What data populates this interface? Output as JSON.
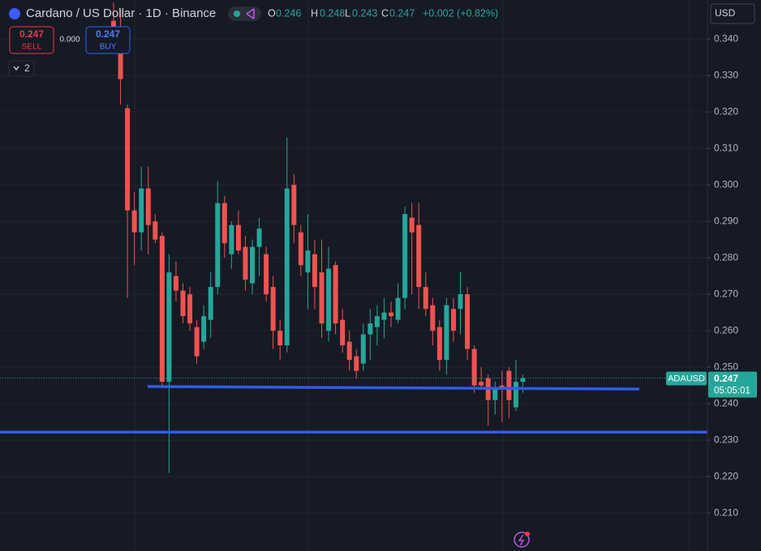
{
  "chart_data": {
    "type": "candlestick",
    "title": "Cardano / US Dollar · 1D · Binance",
    "ohlc": [
      {
        "label": "O",
        "value": "0.246"
      },
      {
        "label": "H",
        "value": "0.248"
      },
      {
        "label": "L",
        "value": "0.243"
      },
      {
        "label": "C",
        "value": "0.247"
      }
    ],
    "change": "+0.002 (+0.82%)",
    "sell": {
      "price": "0.247",
      "label": "SELL"
    },
    "spread": "0.000",
    "buy": {
      "price": "0.247",
      "label": "BUY"
    },
    "indicator_count": "2",
    "currency": "USD",
    "symbol": "ADAUSD",
    "last_price": 0.247,
    "countdown": "05:05:01",
    "up_color": "#26a69a",
    "down_color": "#ef5350",
    "line_color": "#2f5ce8",
    "ylim": [
      0.1996,
      0.3507
    ],
    "yticks": [
      {
        "value": 0.34,
        "label": "0.340"
      },
      {
        "value": 0.33,
        "label": "0.330"
      },
      {
        "value": 0.32,
        "label": "0.320"
      },
      {
        "value": 0.31,
        "label": "0.310"
      },
      {
        "value": 0.3,
        "label": "0.300"
      },
      {
        "value": 0.29,
        "label": "0.290"
      },
      {
        "value": 0.28,
        "label": "0.280"
      },
      {
        "value": 0.27,
        "label": "0.270"
      },
      {
        "value": 0.26,
        "label": "0.260"
      },
      {
        "value": 0.25,
        "label": "0.250"
      },
      {
        "value": 0.24,
        "label": "0.240"
      },
      {
        "value": 0.23,
        "label": "0.230"
      },
      {
        "value": 0.22,
        "label": "0.220"
      },
      {
        "value": 0.21,
        "label": "0.210"
      }
    ],
    "grid": true,
    "trendlines": [
      {
        "values": [
          0.2447,
          0.244
        ]
      },
      {
        "values": [
          0.2322,
          0.2322
        ]
      }
    ],
    "candles": {
      "open": [
        0.345,
        0.34,
        0.321,
        0.293,
        0.287,
        0.299,
        0.29,
        0.286,
        0.246,
        0.275,
        0.271,
        0.27,
        0.261,
        0.257,
        0.263,
        0.272,
        0.295,
        0.281,
        0.289,
        0.283,
        0.273,
        0.283,
        0.281,
        0.272,
        0.26,
        0.256,
        0.3,
        0.287,
        0.276,
        0.281,
        0.276,
        0.26,
        0.278,
        0.263,
        0.257,
        0.253,
        0.251,
        0.259,
        0.261,
        0.263,
        0.265,
        0.263,
        0.269,
        0.291,
        0.289,
        0.272,
        0.267,
        0.261,
        0.252,
        0.266,
        0.266,
        0.27,
        0.255,
        0.246,
        0.247,
        0.241,
        0.245,
        0.249,
        0.239,
        0.246
      ],
      "high": [
        0.35,
        0.348,
        0.322,
        0.298,
        0.305,
        0.305,
        0.292,
        0.287,
        0.281,
        0.279,
        0.273,
        0.272,
        0.263,
        0.267,
        0.276,
        0.301,
        0.297,
        0.29,
        0.293,
        0.286,
        0.285,
        0.291,
        0.283,
        0.275,
        0.263,
        0.313,
        0.303,
        0.289,
        0.292,
        0.285,
        0.285,
        0.283,
        0.279,
        0.266,
        0.26,
        0.255,
        0.262,
        0.266,
        0.267,
        0.269,
        0.268,
        0.273,
        0.294,
        0.295,
        0.295,
        0.276,
        0.269,
        0.263,
        0.269,
        0.269,
        0.276,
        0.272,
        0.256,
        0.25,
        0.248,
        0.246,
        0.249,
        0.25,
        0.252,
        0.248
      ],
      "low": [
        0.338,
        0.322,
        0.269,
        0.278,
        0.282,
        0.281,
        0.284,
        0.245,
        0.221,
        0.268,
        0.262,
        0.26,
        0.251,
        0.255,
        0.258,
        0.27,
        0.28,
        0.277,
        0.281,
        0.271,
        0.27,
        0.275,
        0.268,
        0.255,
        0.252,
        0.254,
        0.284,
        0.275,
        0.266,
        0.266,
        0.258,
        0.257,
        0.259,
        0.254,
        0.249,
        0.247,
        0.249,
        0.252,
        0.256,
        0.258,
        0.261,
        0.262,
        0.266,
        0.27,
        0.266,
        0.264,
        0.256,
        0.249,
        0.248,
        0.257,
        0.259,
        0.252,
        0.243,
        0.244,
        0.234,
        0.237,
        0.235,
        0.236,
        0.238,
        0.243
      ],
      "close": [
        0.34,
        0.329,
        0.293,
        0.287,
        0.299,
        0.289,
        0.285,
        0.246,
        0.276,
        0.271,
        0.264,
        0.262,
        0.253,
        0.264,
        0.272,
        0.295,
        0.284,
        0.289,
        0.282,
        0.274,
        0.283,
        0.288,
        0.27,
        0.26,
        0.256,
        0.299,
        0.289,
        0.278,
        0.282,
        0.272,
        0.262,
        0.277,
        0.262,
        0.256,
        0.252,
        0.249,
        0.259,
        0.262,
        0.264,
        0.265,
        0.264,
        0.269,
        0.292,
        0.287,
        0.272,
        0.266,
        0.26,
        0.252,
        0.267,
        0.26,
        0.27,
        0.255,
        0.245,
        0.245,
        0.241,
        0.244,
        0.244,
        0.241,
        0.246,
        0.247
      ]
    }
  }
}
